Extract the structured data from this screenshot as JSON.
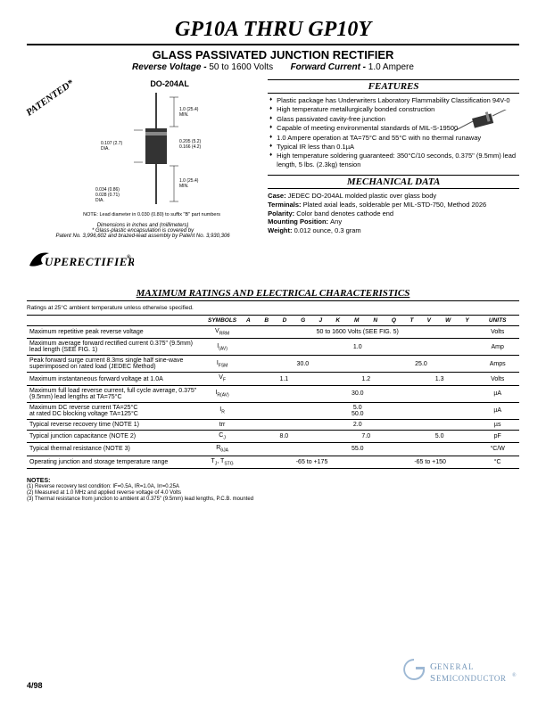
{
  "title": "GP10A THRU GP10Y",
  "subtitle": "GLASS PASSIVATED JUNCTION RECTIFIER",
  "spec_line_rv_label": "Reverse Voltage -",
  "spec_line_rv_val": "50 to 1600 Volts",
  "spec_line_fc_label": "Forward Current -",
  "spec_line_fc_val": "1.0 Ampere",
  "patented": "PATENTED*",
  "package": "DO-204AL",
  "diag_dims": {
    "lead_len": "1.0 (25.4) MIN.",
    "body_dia": "0.107 (2.7) DIA.",
    "body_len": "0.205 (5.2) 0.166 (4.2)",
    "lead_len2": "1.0 (25.4) MIN.",
    "lead_dia": "0.034 (0.86) 0.028 (0.71) DIA."
  },
  "note_lead": "NOTE: Lead diameter in 0.030 (0.80) to suffix \"B\" part numbers",
  "dims_text": "Dimensions in inches and (millimeters)",
  "patent_text1": "* Glass-plastic encapsulation is covered by",
  "patent_text2": "Patent No. 3,996,602 and brazed-lead assembly by Patent No. 3,930,306",
  "superectifier": "SUPERECTIFIER",
  "features_hdr": "FEATURES",
  "features": [
    "Plastic package has Underwriters Laboratory Flammability Classification 94V-0",
    "High temperature metallurgically bonded construction",
    "Glass passivated cavity-free junction",
    "Capable of meeting environmental standards of MIL-S-19500",
    "1.0 Ampere operation at TA=75°C and 55°C with no thermal runaway",
    "Typical IR less than 0.1µA",
    "High temperature soldering guaranteed: 350°C/10 seconds, 0.375\" (9.5mm) lead length, 5 lbs. (2.3kg) tension"
  ],
  "mech_hdr": "MECHANICAL DATA",
  "mech": {
    "case": "JEDEC DO-204AL molded plastic over glass body",
    "terminals": "Plated axial leads, solderable per MIL-STD-750, Method 2026",
    "polarity": "Color band denotes cathode end",
    "mounting": "Any",
    "weight": "0.012 ounce, 0.3 gram"
  },
  "ratings_title": "MAXIMUM RATINGS AND ELECTRICAL CHARACTERISTICS",
  "ratings_note": "Ratings at 25°C ambient temperature unless otherwise specified.",
  "table": {
    "hdr_symbols": "SYMBOLS",
    "hdr_cols": [
      "A",
      "B",
      "D",
      "G",
      "J",
      "K",
      "M",
      "N",
      "Q",
      "T",
      "V",
      "W",
      "Y"
    ],
    "hdr_units": "UNITS",
    "rows": [
      {
        "param": "Maximum repetitive peak reverse voltage",
        "sym": "VRRM",
        "val": "50 to 1600 Volts (SEE FIG. 5)",
        "units": "Volts"
      },
      {
        "param": "Maximum average forward rectified current 0.375\" (9.5mm) lead length (SEE FIG. 1)",
        "sym": "I(AV)",
        "val": "1.0",
        "units": "Amp"
      },
      {
        "param": "Peak forward surge current 8.3ms single half sine-wave superimposed on rated load (JEDEC Method)",
        "sym": "IFSM",
        "val1": "30.0",
        "val2": "25.0",
        "units": "Amps"
      },
      {
        "param": "Maximum instantaneous forward voltage at 1.0A",
        "sym": "VF",
        "val1": "1.1",
        "val2": "1.2",
        "val3": "1.3",
        "units": "Volts"
      },
      {
        "param": "Maximum full load reverse current, full cycle average, 0.375\" (9.5mm) lead lengths at TA=75°C",
        "sym": "IR(AV)",
        "val": "30.0",
        "units": "µA"
      },
      {
        "param": "Maximum DC reverse current           TA=25°C\nat rated DC blocking voltage           TA=125°C",
        "sym": "IR",
        "val1": "5.0",
        "val2": "50.0",
        "units": "µA"
      },
      {
        "param": "Typical reverse recovery time (NOTE 1)",
        "sym": "trr",
        "val": "2.0",
        "units": "µs"
      },
      {
        "param": "Typical junction capacitance (NOTE 2)",
        "sym": "CJ",
        "val1": "8.0",
        "val2": "7.0",
        "val3": "5.0",
        "units": "pF"
      },
      {
        "param": "Typical thermal resistance (NOTE 3)",
        "sym": "RθJA",
        "val": "55.0",
        "units": "°C/W"
      },
      {
        "param": "Operating junction and storage temperature range",
        "sym": "TJ, TSTG",
        "val1": "-65 to +175",
        "val2": "-65 to +150",
        "units": "°C"
      }
    ]
  },
  "notes_hdr": "NOTES:",
  "notes": [
    "(1) Reverse recovery test condition: IF=0.5A, IR=1.0A, Irr=0.25A",
    "(2) Measured at 1.0 MHz and applied reverse voltage of 4.0 Volts",
    "(3) Thermal resistance from junction to ambient at 0.375\" (9.5mm) lead lengths, P.C.B. mounted"
  ],
  "footer_left": "4/98",
  "footer_brand1": "GENERAL",
  "footer_brand2": "SEMICONDUCTOR"
}
